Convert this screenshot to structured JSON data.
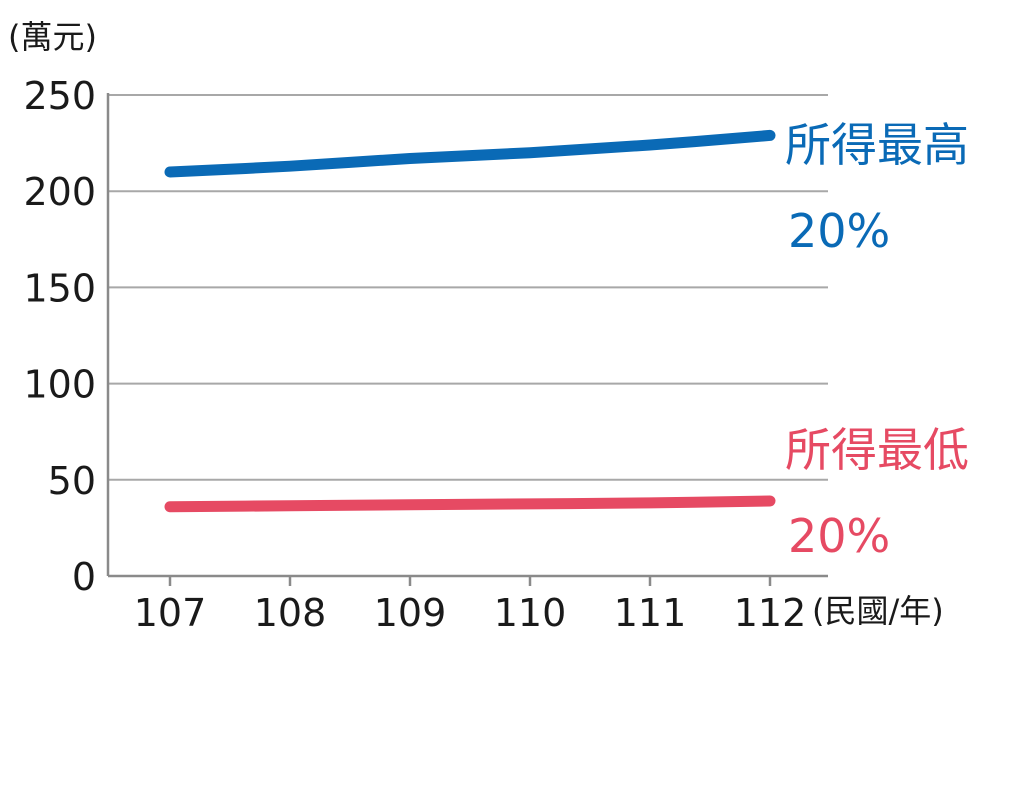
{
  "chart_data": {
    "type": "line",
    "y_unit": "(萬元)",
    "x_unit": "(民國/年)",
    "x": [
      "107",
      "108",
      "109",
      "110",
      "111",
      "112"
    ],
    "ylim": [
      0,
      250
    ],
    "yticks": [
      "0",
      "50",
      "100",
      "150",
      "200",
      "250"
    ],
    "grid": true,
    "series": [
      {
        "name": "所得最高",
        "name_line2": "20%",
        "color": "#0a6ab6",
        "values": [
          210,
          213,
          217,
          220,
          224,
          229
        ]
      },
      {
        "name": "所得最低",
        "name_line2": "20%",
        "color": "#e64a63",
        "values": [
          36,
          36.5,
          37,
          37.5,
          38,
          39
        ]
      }
    ]
  }
}
